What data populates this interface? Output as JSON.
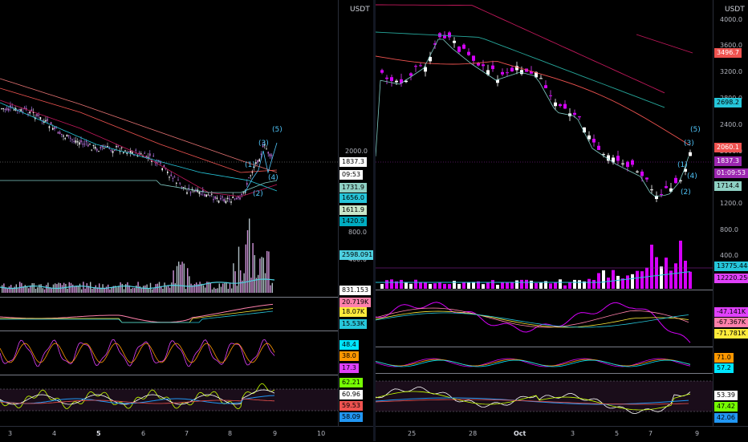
{
  "left": {
    "currency": "USDT",
    "price_ticks": [
      "2000.0",
      "800.0",
      "400.0"
    ],
    "wave_labels": [
      "(5)",
      "(3)",
      "(1)",
      "(4)",
      "(2)"
    ],
    "badges": [
      {
        "text": "1837.3",
        "bg": "#ffffff",
        "fg": "#000000"
      },
      {
        "text": "09:53",
        "bg": "#ffffff",
        "fg": "#000000"
      },
      {
        "text": "1731.9",
        "bg": "#8fd1c4",
        "fg": "#000000"
      },
      {
        "text": "1656.0",
        "bg": "#26c6da",
        "fg": "#000000"
      },
      {
        "text": "1611.9",
        "bg": "#c8e6c9",
        "fg": "#000000"
      },
      {
        "text": "1420.9",
        "bg": "#00acc1",
        "fg": "#000000"
      },
      {
        "text": "2598.091",
        "bg": "#4dd0e1",
        "fg": "#000000"
      },
      {
        "text": "831.153",
        "bg": "#ffffff",
        "fg": "#000000"
      },
      {
        "text": "20.719K",
        "bg": "#ff80ab",
        "fg": "#000000"
      },
      {
        "text": "18.07K",
        "bg": "#ffeb3b",
        "fg": "#000000"
      },
      {
        "text": "15.53K",
        "bg": "#26c6da",
        "fg": "#000000"
      },
      {
        "text": "48.4",
        "bg": "#00e5ff",
        "fg": "#000000"
      },
      {
        "text": "38.0",
        "bg": "#ff9800",
        "fg": "#000000"
      },
      {
        "text": "17.3",
        "bg": "#e040fb",
        "fg": "#000000"
      },
      {
        "text": "62.21",
        "bg": "#76ff03",
        "fg": "#000000"
      },
      {
        "text": "60.96",
        "bg": "#ffffff",
        "fg": "#000000"
      },
      {
        "text": "59.53",
        "bg": "#ef5350",
        "fg": "#000000"
      },
      {
        "text": "58.09",
        "bg": "#2196f3",
        "fg": "#000000"
      }
    ],
    "x_ticks": [
      {
        "label": "3",
        "bold": false
      },
      {
        "label": "4",
        "bold": false
      },
      {
        "label": "5",
        "bold": true
      },
      {
        "label": "6",
        "bold": false
      },
      {
        "label": "7",
        "bold": false
      },
      {
        "label": "8",
        "bold": false
      },
      {
        "label": "9",
        "bold": false
      },
      {
        "label": "10",
        "bold": false
      }
    ]
  },
  "right": {
    "currency": "USDT",
    "price_ticks": [
      "4000.0",
      "3600.0",
      "3200.0",
      "2800.0",
      "2400.0",
      "2000.0",
      "1600.0",
      "1200.0",
      "800.0",
      "400.0"
    ],
    "wave_labels": [
      "(5)",
      "(3)",
      "(1)",
      "(4)",
      "(2)"
    ],
    "badges": [
      {
        "text": "3496.7",
        "bg": "#ef5350",
        "fg": "#ffffff"
      },
      {
        "text": "2698.2",
        "bg": "#26c6da",
        "fg": "#000000"
      },
      {
        "text": "2060.1",
        "bg": "#ef5350",
        "fg": "#ffffff"
      },
      {
        "text": "1837.3",
        "bg": "#9c27b0",
        "fg": "#ffffff"
      },
      {
        "text": "01:09:53",
        "bg": "#9c27b0",
        "fg": "#ffffff"
      },
      {
        "text": "1714.4",
        "bg": "#8fd1c4",
        "fg": "#000000"
      },
      {
        "text": "13775.448",
        "bg": "#26c6da",
        "fg": "#000000"
      },
      {
        "text": "12220.256",
        "bg": "#e040fb",
        "fg": "#000000"
      },
      {
        "text": "-47.141K",
        "bg": "#e040fb",
        "fg": "#000000"
      },
      {
        "text": "-67.367K",
        "bg": "#ff80ab",
        "fg": "#000000"
      },
      {
        "text": "-71.781K",
        "bg": "#ffeb3b",
        "fg": "#000000"
      },
      {
        "text": "71.0",
        "bg": "#ff9800",
        "fg": "#000000"
      },
      {
        "text": "57.2",
        "bg": "#00e5ff",
        "fg": "#000000"
      },
      {
        "text": "53.39",
        "bg": "#ffffff",
        "fg": "#000000"
      },
      {
        "text": "47.42",
        "bg": "#76ff03",
        "fg": "#000000"
      },
      {
        "text": "42.06",
        "bg": "#2196f3",
        "fg": "#000000"
      }
    ],
    "x_ticks": [
      {
        "label": "25",
        "bold": false
      },
      {
        "label": "28",
        "bold": false
      },
      {
        "label": "Oct",
        "bold": true
      },
      {
        "label": "3",
        "bold": false
      },
      {
        "label": "5",
        "bold": false
      },
      {
        "label": "7",
        "bold": false
      },
      {
        "label": "9",
        "bold": false
      }
    ]
  }
}
